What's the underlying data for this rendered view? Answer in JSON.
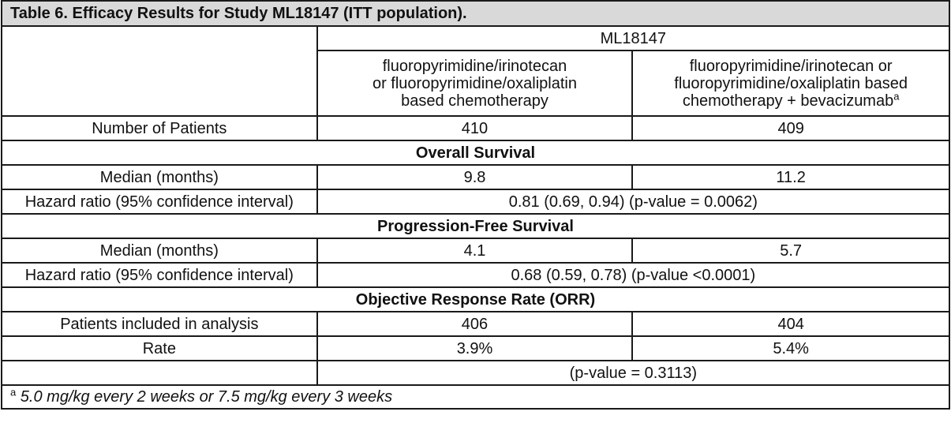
{
  "caption": "Table 6. Efficacy Results for Study ML18147 (ITT population).",
  "study_header": "ML18147",
  "arms": [
    {
      "line1": "fluoropyrimidine/irinotecan",
      "line2": "or fluoropyrimidine/oxaliplatin",
      "line3": "based chemotherapy",
      "sup": ""
    },
    {
      "line1": "fluoropyrimidine/irinotecan or",
      "line2": "fluoropyrimidine/oxaliplatin based",
      "line3": "chemotherapy + bevacizumab",
      "sup": "a"
    }
  ],
  "number_of_patients": {
    "label": "Number of Patients",
    "arm1": "410",
    "arm2": "409"
  },
  "overall_survival": {
    "title": "Overall Survival",
    "median": {
      "label": "Median (months)",
      "arm1": "9.8",
      "arm2": "11.2"
    },
    "hazard": {
      "label": "Hazard ratio (95% confidence interval)",
      "value": "0.81 (0.69, 0.94) (p-value = 0.0062)"
    }
  },
  "pfs": {
    "title": "Progression-Free Survival",
    "median": {
      "label": "Median (months)",
      "arm1": "4.1",
      "arm2": "5.7"
    },
    "hazard": {
      "label": "Hazard ratio (95% confidence interval)",
      "value": "0.68 (0.59, 0.78) (p-value <0.0001)"
    }
  },
  "orr": {
    "title": "Objective Response Rate (ORR)",
    "patients": {
      "label": "Patients included in analysis",
      "arm1": "406",
      "arm2": "404"
    },
    "rate": {
      "label": "Rate",
      "arm1": "3.9%",
      "arm2": "5.4%"
    },
    "pvalue": "(p-value = 0.3113)"
  },
  "footnote": {
    "mark": "a",
    "text": "5.0 mg/kg every 2 weeks or 7.5 mg/kg every 3 weeks"
  }
}
